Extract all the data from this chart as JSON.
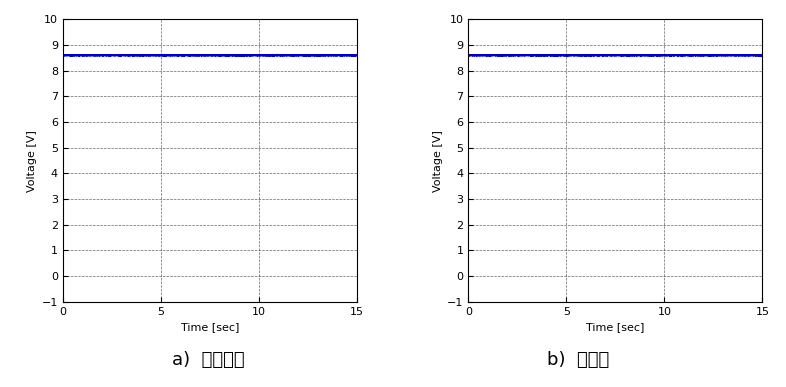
{
  "subplot_a_label": "a)  발전기반",
  "subplot_b_label": "b)  동기반",
  "xlabel": "Time [sec]",
  "ylabel": "Voltage [V]",
  "xlim": [
    0,
    15
  ],
  "ylim": [
    -1,
    10
  ],
  "xticks": [
    0,
    5,
    10,
    15
  ],
  "yticks": [
    -1,
    0,
    1,
    2,
    3,
    4,
    5,
    6,
    7,
    8,
    9,
    10
  ],
  "voltage_level_a": 8.6,
  "voltage_level_b": 8.6,
  "line_color": "#0000CC",
  "line_width": 1.2,
  "grid_color": "#000000",
  "grid_linestyle": "--",
  "grid_linewidth": 0.5,
  "grid_alpha": 0.6,
  "background_color": "#FFFFFF",
  "tick_fontsize": 8,
  "axis_label_fontsize": 8,
  "caption_fontsize": 13
}
